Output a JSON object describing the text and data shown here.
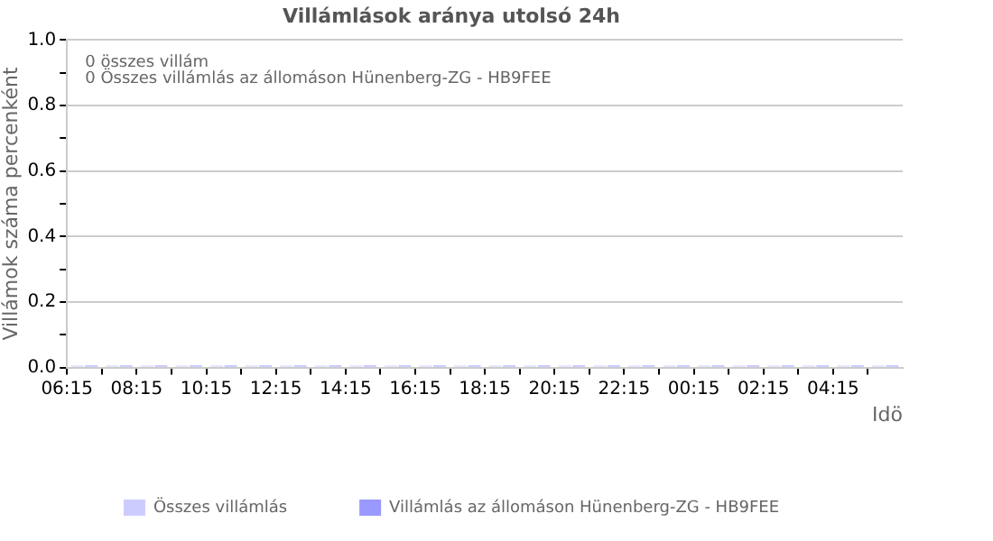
{
  "chart_data": {
    "type": "bar",
    "title": "Villámlások aránya utolsó 24h",
    "xlabel": "Idö",
    "ylabel": "Villámok száma percenként",
    "annotations": [
      "0 összes villám",
      "0 Összes villámlás az állomáson Hünenberg-ZG - HB9FEE"
    ],
    "x": [
      "--01-01T06:45",
      "--01-01T07:45",
      "--01-01T08:45",
      "--01-01T09:45",
      "--01-01T10:45",
      "--01-01T11:45",
      "--01-01T12:45",
      "--01-01T13:45",
      "--01-01T14:45",
      "--01-01T15:45",
      "--01-01T16:45",
      "--01-01T17:45",
      "--01-01T18:45",
      "--01-01T19:45",
      "--01-01T20:45",
      "--01-01T21:45",
      "--01-01T22:45",
      "--01-01T23:45",
      "--01-02T00:45",
      "--01-02T01:45",
      "--01-02T02:45",
      "--01-02T03:45",
      "--01-02T04:45",
      "--01-02T05:45"
    ],
    "series": [
      {
        "name": "Összes villámlás",
        "color": "#ccccff",
        "values": [
          0,
          0,
          0,
          0,
          0,
          0,
          0,
          0,
          0,
          0,
          0,
          0,
          0,
          0,
          0,
          0,
          0,
          0,
          0,
          0,
          0,
          0,
          0,
          0
        ]
      },
      {
        "name": "Villámlás az állomáson Hünenberg-ZG - HB9FEE",
        "color": "#9999ff",
        "values": [
          0,
          0,
          0,
          0,
          0,
          0,
          0,
          0,
          0,
          0,
          0,
          0,
          0,
          0,
          0,
          0,
          0,
          0,
          0,
          0,
          0,
          0,
          0,
          0
        ]
      }
    ],
    "xlim": [
      "--01-01T06:15",
      "--01-02T06:15"
    ],
    "xticks": [
      {
        "value": "--01-01T06:15",
        "label": "06:15"
      },
      {
        "value": "--01-01T07:15",
        "label": null
      },
      {
        "value": "--01-01T08:15",
        "label": "08:15"
      },
      {
        "value": "--01-01T09:15",
        "label": null
      },
      {
        "value": "--01-01T10:15",
        "label": "10:15"
      },
      {
        "value": "--01-01T11:15",
        "label": null
      },
      {
        "value": "--01-01T12:15",
        "label": "12:15"
      },
      {
        "value": "--01-01T13:15",
        "label": null
      },
      {
        "value": "--01-01T14:15",
        "label": "14:15"
      },
      {
        "value": "--01-01T15:15",
        "label": null
      },
      {
        "value": "--01-01T16:15",
        "label": "16:15"
      },
      {
        "value": "--01-01T17:15",
        "label": null
      },
      {
        "value": "--01-01T18:15",
        "label": "18:15"
      },
      {
        "value": "--01-01T19:15",
        "label": null
      },
      {
        "value": "--01-01T20:15",
        "label": "20:15"
      },
      {
        "value": "--01-01T21:15",
        "label": null
      },
      {
        "value": "--01-01T22:15",
        "label": "22:15"
      },
      {
        "value": "--01-01T23:15",
        "label": null
      },
      {
        "value": "--01-02T00:15",
        "label": "00:15"
      },
      {
        "value": "--01-02T01:15",
        "label": null
      },
      {
        "value": "--01-02T02:15",
        "label": "02:15"
      },
      {
        "value": "--01-02T03:15",
        "label": null
      },
      {
        "value": "--01-02T04:15",
        "label": "04:15"
      },
      {
        "value": "--01-02T05:15",
        "label": null
      }
    ],
    "ylim": [
      0,
      1
    ],
    "yticks": [
      {
        "value": 0,
        "label": "0.0"
      },
      {
        "value": 0.1,
        "label": null
      },
      {
        "value": 0.2,
        "label": "0.2"
      },
      {
        "value": 0.3,
        "label": null
      },
      {
        "value": 0.4,
        "label": "0.4"
      },
      {
        "value": 0.5,
        "label": null
      },
      {
        "value": 0.6,
        "label": "0.6"
      },
      {
        "value": 0.7,
        "label": null
      },
      {
        "value": 0.8,
        "label": "0.8"
      },
      {
        "value": 0.9,
        "label": null
      },
      {
        "value": 1,
        "label": "1.0"
      }
    ],
    "grid": "y",
    "legend": "bottom"
  }
}
